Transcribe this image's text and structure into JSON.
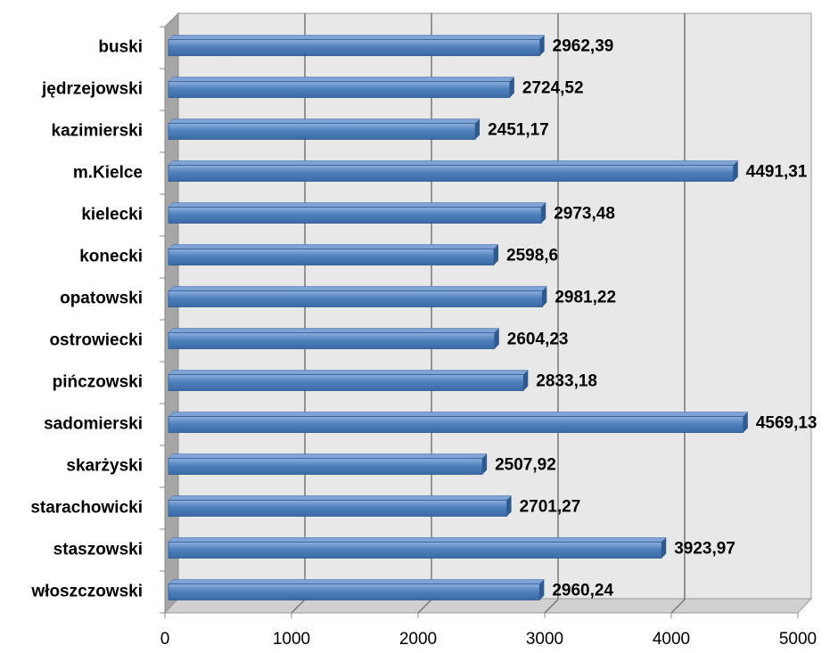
{
  "chart_data": {
    "type": "bar",
    "orientation": "horizontal",
    "categories": [
      "buski",
      "jędrzejowski",
      "kazimierski",
      "m.Kielce",
      "kielecki",
      "konecki",
      "opatowski",
      "ostrowiecki",
      "pińczowski",
      "sadomierski",
      "skarżyski",
      "starachowicki",
      "staszowski",
      "włoszczowski"
    ],
    "values": [
      2962.39,
      2724.52,
      2451.17,
      4491.31,
      2973.48,
      2598.6,
      2981.22,
      2604.23,
      2833.18,
      4569.13,
      2507.92,
      2701.27,
      3923.97,
      2960.24
    ],
    "value_labels": [
      "2962,39",
      "2724,52",
      "2451,17",
      "4491,31",
      "2973,48",
      "2598,6",
      "2981,22",
      "2604,23",
      "2833,18",
      "4569,13",
      "2507,92",
      "2701,27",
      "3923,97",
      "2960,24"
    ],
    "color": "#4f81bd",
    "xlim": [
      0,
      5000
    ],
    "xticks": [
      0,
      1000,
      2000,
      3000,
      4000,
      5000
    ],
    "grid": true
  }
}
